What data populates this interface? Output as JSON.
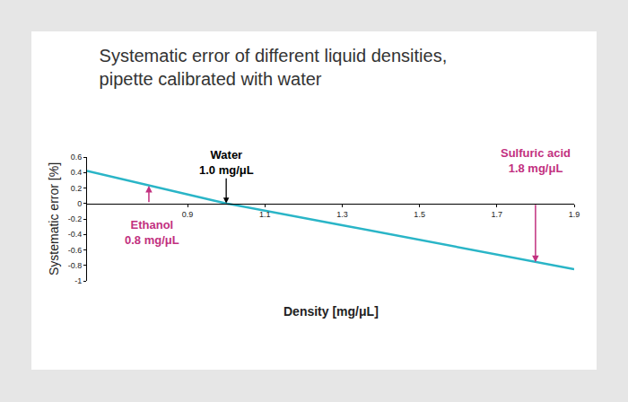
{
  "chart_data": {
    "type": "line",
    "title": "Systematic error of different liquid densities,\npipette calibrated with water",
    "x_label": "Density [mg/μL]",
    "y_label": "Systematic error [%]",
    "x": [
      0.64,
      0.8,
      1.0,
      1.3,
      1.8,
      1.9
    ],
    "values": [
      0.42,
      0.23,
      0,
      -0.28,
      -0.76,
      -0.85
    ],
    "color": "#2ab5c7",
    "xlim": [
      0.64,
      1.9
    ],
    "ylim": [
      -1,
      0.6
    ],
    "xticks": [
      0.9,
      1.1,
      1.3,
      1.5,
      1.7,
      1.9
    ],
    "yticks": [
      0.6,
      0.4,
      0.2,
      0,
      -0.2,
      -0.4,
      -0.6,
      -0.8,
      -1
    ],
    "grid": false,
    "annotations": [
      {
        "text": "Water\n1.0 mg/μL",
        "x": 1.0,
        "color": "#000000"
      },
      {
        "text": "Ethanol\n0.8 mg/μL",
        "x": 0.8,
        "color": "#c2307f"
      },
      {
        "text": "Sulfuric acid\n1.8 mg/μL",
        "x": 1.8,
        "color": "#c2307f"
      }
    ]
  }
}
